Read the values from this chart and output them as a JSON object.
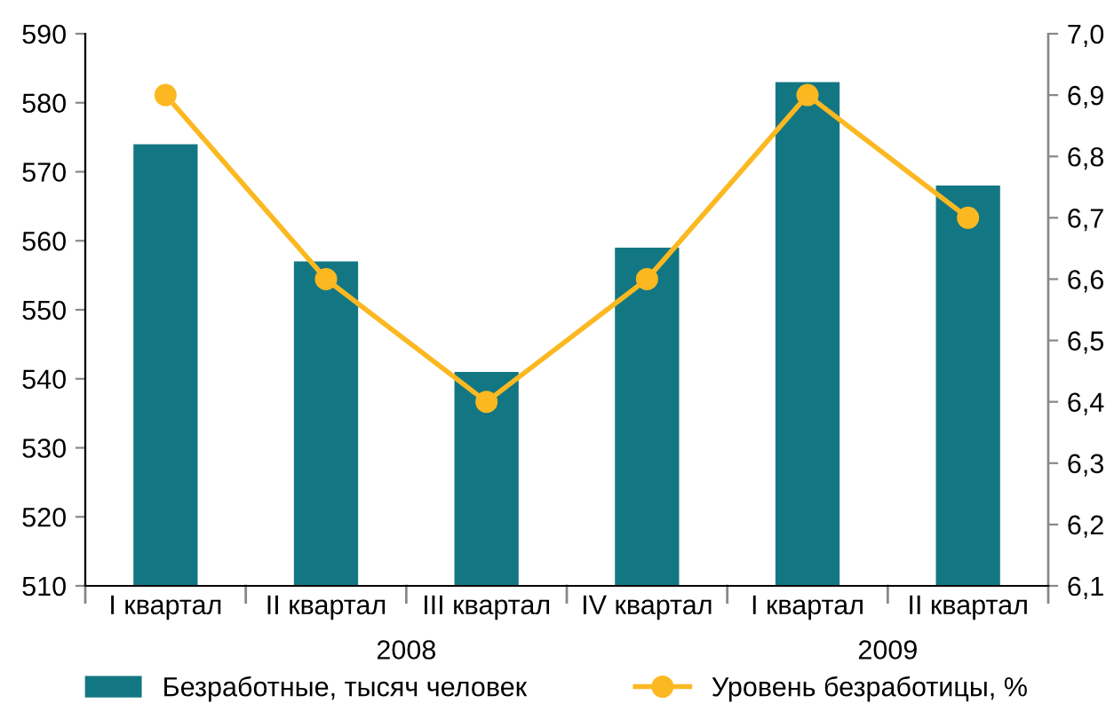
{
  "chart_data": {
    "type": "bar",
    "categories": [
      "I квартал",
      "II квартал",
      "III квартал",
      "IV квартал",
      "I квартал",
      "II квартал"
    ],
    "series": [
      {
        "name": "Безработные, тысяч человек",
        "color": "#137783",
        "values": [
          574,
          557,
          541,
          559,
          583,
          568
        ]
      },
      {
        "name": "Уровень безработицы, %",
        "color": "#fbb821",
        "type": "line",
        "axis": "y2",
        "marker": "circle",
        "values": [
          6.9,
          6.6,
          6.4,
          6.6,
          6.9,
          6.7
        ]
      }
    ],
    "annotations": [
      "2008",
      "2009"
    ],
    "ylim": [
      510,
      590
    ],
    "yticks": [
      510,
      520,
      530,
      540,
      550,
      560,
      570,
      580,
      590
    ],
    "y2lim": [
      6.1,
      7.0
    ],
    "y2ticks": [
      {
        "value": 6.1,
        "label": "6,1"
      },
      {
        "value": 6.2,
        "label": "6,2"
      },
      {
        "value": 6.3,
        "label": "6,3"
      },
      {
        "value": 6.4,
        "label": "6,4"
      },
      {
        "value": 6.5,
        "label": "6,5"
      },
      {
        "value": 6.6,
        "label": "6,6"
      },
      {
        "value": 6.7,
        "label": "6,7"
      },
      {
        "value": 6.8,
        "label": "6,8"
      },
      {
        "value": 6.9,
        "label": "6,9"
      },
      {
        "value": 7.0,
        "label": "7,0"
      }
    ],
    "grid": false,
    "legend": "bottom"
  }
}
